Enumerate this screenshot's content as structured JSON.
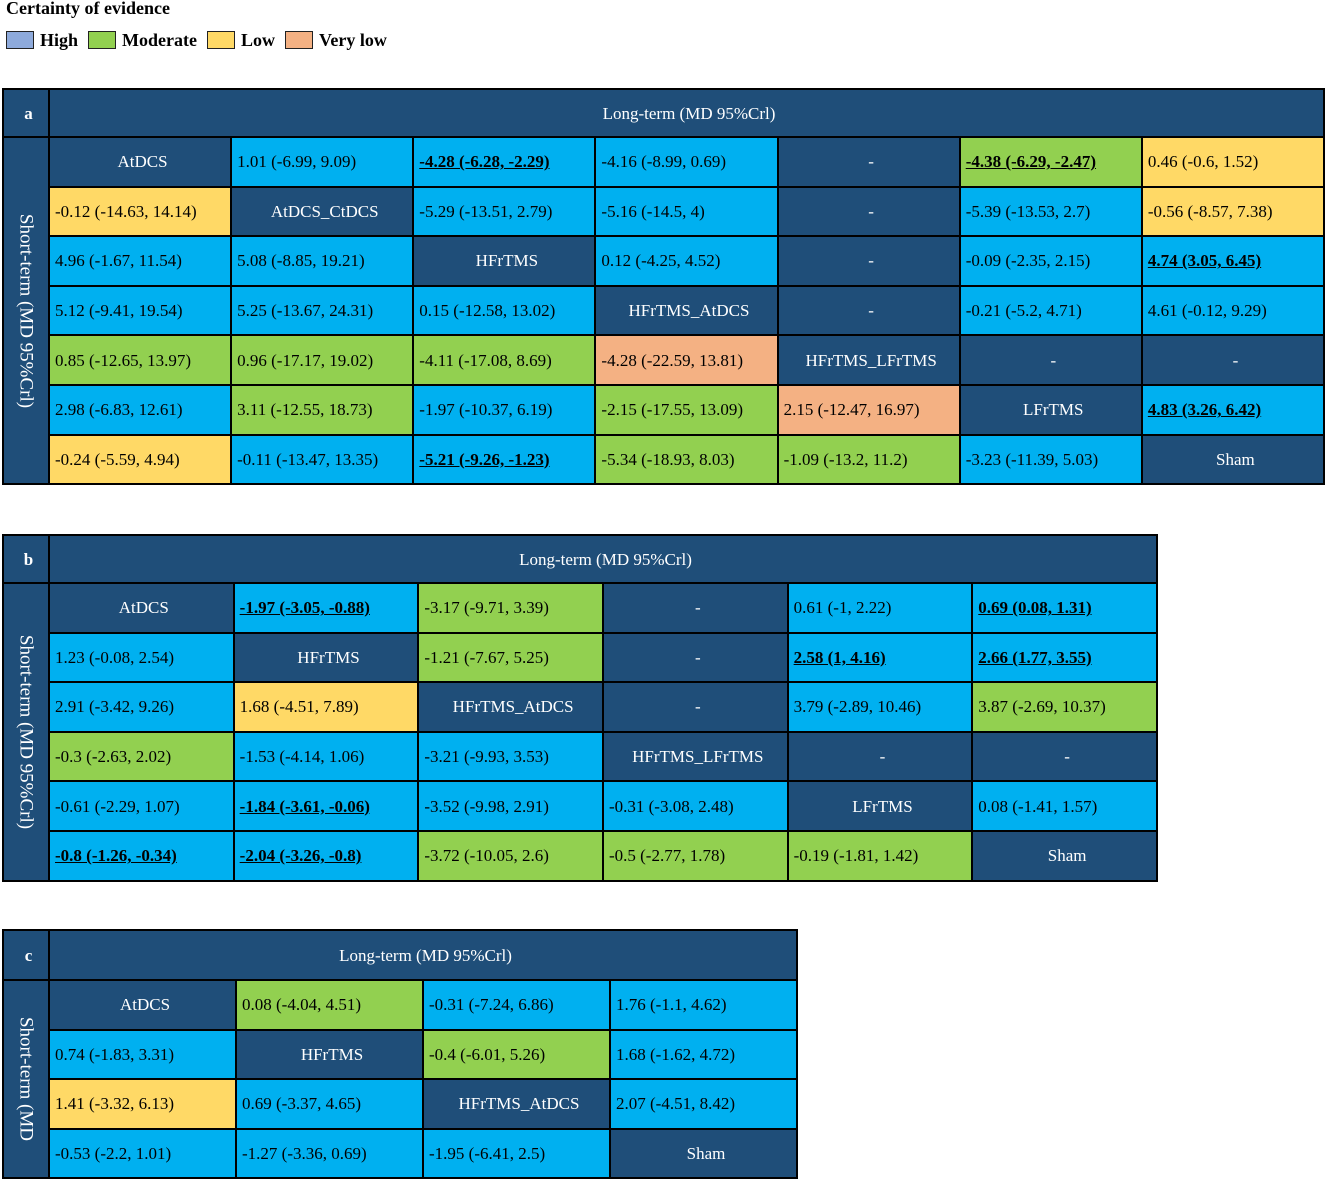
{
  "legend": {
    "title": "Certainty of evidence",
    "items": [
      {
        "label": "High",
        "color": "#8eaadb"
      },
      {
        "label": "Moderate",
        "color": "#92d050"
      },
      {
        "label": "Low",
        "color": "#ffd966"
      },
      {
        "label": "Very low",
        "color": "#f4b183"
      }
    ]
  },
  "colors": {
    "header": "#1f4e79",
    "high": "#00b0f0",
    "moderate": "#92d050",
    "low": "#ffd966",
    "very_low": "#f4b183"
  },
  "panels": [
    {
      "letter": "a",
      "header": "Long-term (MD 95%Crl)",
      "side_label": "Short-term (MD 95%Crl)",
      "rows": [
        [
          {
            "t": "AtDCS",
            "c": "diag"
          },
          {
            "t": "1.01 (-6.99, 9.09)",
            "c": "high"
          },
          {
            "t": "-4.28 (-6.28, -2.29)",
            "c": "high",
            "b": true
          },
          {
            "t": "-4.16 (-8.99, 0.69)",
            "c": "high"
          },
          {
            "t": "-",
            "c": "dash"
          },
          {
            "t": "-4.38 (-6.29, -2.47)",
            "c": "mod",
            "b": true
          },
          {
            "t": "0.46 (-0.6, 1.52)",
            "c": "low"
          }
        ],
        [
          {
            "t": "-0.12 (-14.63, 14.14)",
            "c": "low"
          },
          {
            "t": "AtDCS_CtDCS",
            "c": "diag"
          },
          {
            "t": "-5.29 (-13.51, 2.79)",
            "c": "high"
          },
          {
            "t": "-5.16 (-14.5, 4)",
            "c": "high"
          },
          {
            "t": "-",
            "c": "dash"
          },
          {
            "t": "-5.39 (-13.53, 2.7)",
            "c": "high"
          },
          {
            "t": "-0.56 (-8.57, 7.38)",
            "c": "low"
          }
        ],
        [
          {
            "t": "4.96 (-1.67, 11.54)",
            "c": "high"
          },
          {
            "t": "5.08 (-8.85, 19.21)",
            "c": "high"
          },
          {
            "t": "HFrTMS",
            "c": "diag"
          },
          {
            "t": "0.12 (-4.25, 4.52)",
            "c": "high"
          },
          {
            "t": "-",
            "c": "dash"
          },
          {
            "t": "-0.09 (-2.35, 2.15)",
            "c": "high"
          },
          {
            "t": "4.74 (3.05, 6.45)",
            "c": "high",
            "b": true
          }
        ],
        [
          {
            "t": "5.12 (-9.41, 19.54)",
            "c": "high"
          },
          {
            "t": "5.25 (-13.67, 24.31)",
            "c": "high"
          },
          {
            "t": "0.15 (-12.58, 13.02)",
            "c": "high"
          },
          {
            "t": "HFrTMS_AtDCS",
            "c": "diag"
          },
          {
            "t": "-",
            "c": "dash"
          },
          {
            "t": "-0.21 (-5.2, 4.71)",
            "c": "high"
          },
          {
            "t": "4.61 (-0.12, 9.29)",
            "c": "high"
          }
        ],
        [
          {
            "t": "0.85 (-12.65, 13.97)",
            "c": "mod"
          },
          {
            "t": "0.96 (-17.17, 19.02)",
            "c": "mod"
          },
          {
            "t": "-4.11 (-17.08, 8.69)",
            "c": "mod"
          },
          {
            "t": "-4.28 (-22.59, 13.81)",
            "c": "vlow"
          },
          {
            "t": "HFrTMS_LFrTMS",
            "c": "diag"
          },
          {
            "t": "-",
            "c": "dash"
          },
          {
            "t": "-",
            "c": "dash"
          }
        ],
        [
          {
            "t": "2.98 (-6.83, 12.61)",
            "c": "high"
          },
          {
            "t": "3.11 (-12.55, 18.73)",
            "c": "mod"
          },
          {
            "t": "-1.97 (-10.37, 6.19)",
            "c": "high"
          },
          {
            "t": "-2.15 (-17.55, 13.09)",
            "c": "mod"
          },
          {
            "t": "2.15 (-12.47, 16.97)",
            "c": "vlow"
          },
          {
            "t": "LFrTMS",
            "c": "diag"
          },
          {
            "t": "4.83 (3.26, 6.42)",
            "c": "high",
            "b": true
          }
        ],
        [
          {
            "t": "-0.24 (-5.59, 4.94)",
            "c": "low"
          },
          {
            "t": "-0.11 (-13.47, 13.35)",
            "c": "high"
          },
          {
            "t": "-5.21 (-9.26, -1.23)",
            "c": "high",
            "b": true
          },
          {
            "t": "-5.34 (-18.93, 8.03)",
            "c": "mod"
          },
          {
            "t": "-1.09 (-13.2, 11.2)",
            "c": "mod"
          },
          {
            "t": "-3.23 (-11.39, 5.03)",
            "c": "high"
          },
          {
            "t": "Sham",
            "c": "diag"
          }
        ]
      ]
    },
    {
      "letter": "b",
      "header": "Long-term (MD 95%Crl)",
      "side_label": "Short-term (MD 95%Crl)",
      "rows": [
        [
          {
            "t": "AtDCS",
            "c": "diag"
          },
          {
            "t": "-1.97 (-3.05, -0.88)",
            "c": "high",
            "b": true
          },
          {
            "t": "-3.17 (-9.71, 3.39)",
            "c": "mod"
          },
          {
            "t": "-",
            "c": "dash"
          },
          {
            "t": "0.61 (-1, 2.22)",
            "c": "high"
          },
          {
            "t": "0.69 (0.08, 1.31)",
            "c": "high",
            "b": true
          }
        ],
        [
          {
            "t": "1.23 (-0.08, 2.54)",
            "c": "high"
          },
          {
            "t": "HFrTMS",
            "c": "diag"
          },
          {
            "t": "-1.21 (-7.67, 5.25)",
            "c": "mod"
          },
          {
            "t": "-",
            "c": "dash"
          },
          {
            "t": "2.58 (1, 4.16)",
            "c": "high",
            "b": true
          },
          {
            "t": "2.66 (1.77, 3.55)",
            "c": "high",
            "b": true
          }
        ],
        [
          {
            "t": "2.91 (-3.42, 9.26)",
            "c": "high"
          },
          {
            "t": "1.68 (-4.51, 7.89)",
            "c": "low"
          },
          {
            "t": "HFrTMS_AtDCS",
            "c": "diag"
          },
          {
            "t": "-",
            "c": "dash"
          },
          {
            "t": "3.79 (-2.89, 10.46)",
            "c": "high"
          },
          {
            "t": "3.87 (-2.69, 10.37)",
            "c": "mod"
          }
        ],
        [
          {
            "t": "-0.3 (-2.63, 2.02)",
            "c": "mod"
          },
          {
            "t": "-1.53 (-4.14, 1.06)",
            "c": "high"
          },
          {
            "t": "-3.21 (-9.93, 3.53)",
            "c": "high"
          },
          {
            "t": "HFrTMS_LFrTMS",
            "c": "diag"
          },
          {
            "t": "-",
            "c": "dash"
          },
          {
            "t": "-",
            "c": "dash"
          }
        ],
        [
          {
            "t": "-0.61 (-2.29, 1.07)",
            "c": "high"
          },
          {
            "t": "-1.84 (-3.61, -0.06)",
            "c": "high",
            "b": true
          },
          {
            "t": "-3.52 (-9.98, 2.91)",
            "c": "high"
          },
          {
            "t": "-0.31 (-3.08, 2.48)",
            "c": "high"
          },
          {
            "t": "LFrTMS",
            "c": "diag"
          },
          {
            "t": "0.08 (-1.41, 1.57)",
            "c": "high"
          }
        ],
        [
          {
            "t": "-0.8 (-1.26, -0.34)",
            "c": "high",
            "b": true
          },
          {
            "t": "-2.04 (-3.26, -0.8)",
            "c": "high",
            "b": true
          },
          {
            "t": "-3.72 (-10.05, 2.6)",
            "c": "mod"
          },
          {
            "t": "-0.5 (-2.77, 1.78)",
            "c": "mod"
          },
          {
            "t": "-0.19 (-1.81, 1.42)",
            "c": "mod"
          },
          {
            "t": "Sham",
            "c": "diag"
          }
        ]
      ]
    },
    {
      "letter": "c",
      "header": "Long-term (MD 95%Crl)",
      "side_label": "Short-term (MD",
      "rows": [
        [
          {
            "t": "AtDCS",
            "c": "diag"
          },
          {
            "t": "0.08 (-4.04, 4.51)",
            "c": "mod"
          },
          {
            "t": "-0.31 (-7.24, 6.86)",
            "c": "high"
          },
          {
            "t": "1.76 (-1.1, 4.62)",
            "c": "high"
          }
        ],
        [
          {
            "t": "0.74 (-1.83, 3.31)",
            "c": "high"
          },
          {
            "t": "HFrTMS",
            "c": "diag"
          },
          {
            "t": "-0.4 (-6.01, 5.26)",
            "c": "mod"
          },
          {
            "t": "1.68 (-1.62, 4.72)",
            "c": "high"
          }
        ],
        [
          {
            "t": "1.41 (-3.32, 6.13)",
            "c": "low"
          },
          {
            "t": "0.69 (-3.37, 4.65)",
            "c": "high"
          },
          {
            "t": "HFrTMS_AtDCS",
            "c": "diag"
          },
          {
            "t": "2.07 (-4.51, 8.42)",
            "c": "high"
          }
        ],
        [
          {
            "t": "-0.53 (-2.2, 1.01)",
            "c": "high"
          },
          {
            "t": "-1.27 (-3.36, 0.69)",
            "c": "high"
          },
          {
            "t": "-1.95 (-6.41, 2.5)",
            "c": "high"
          },
          {
            "t": "Sham",
            "c": "diag"
          }
        ]
      ]
    }
  ]
}
